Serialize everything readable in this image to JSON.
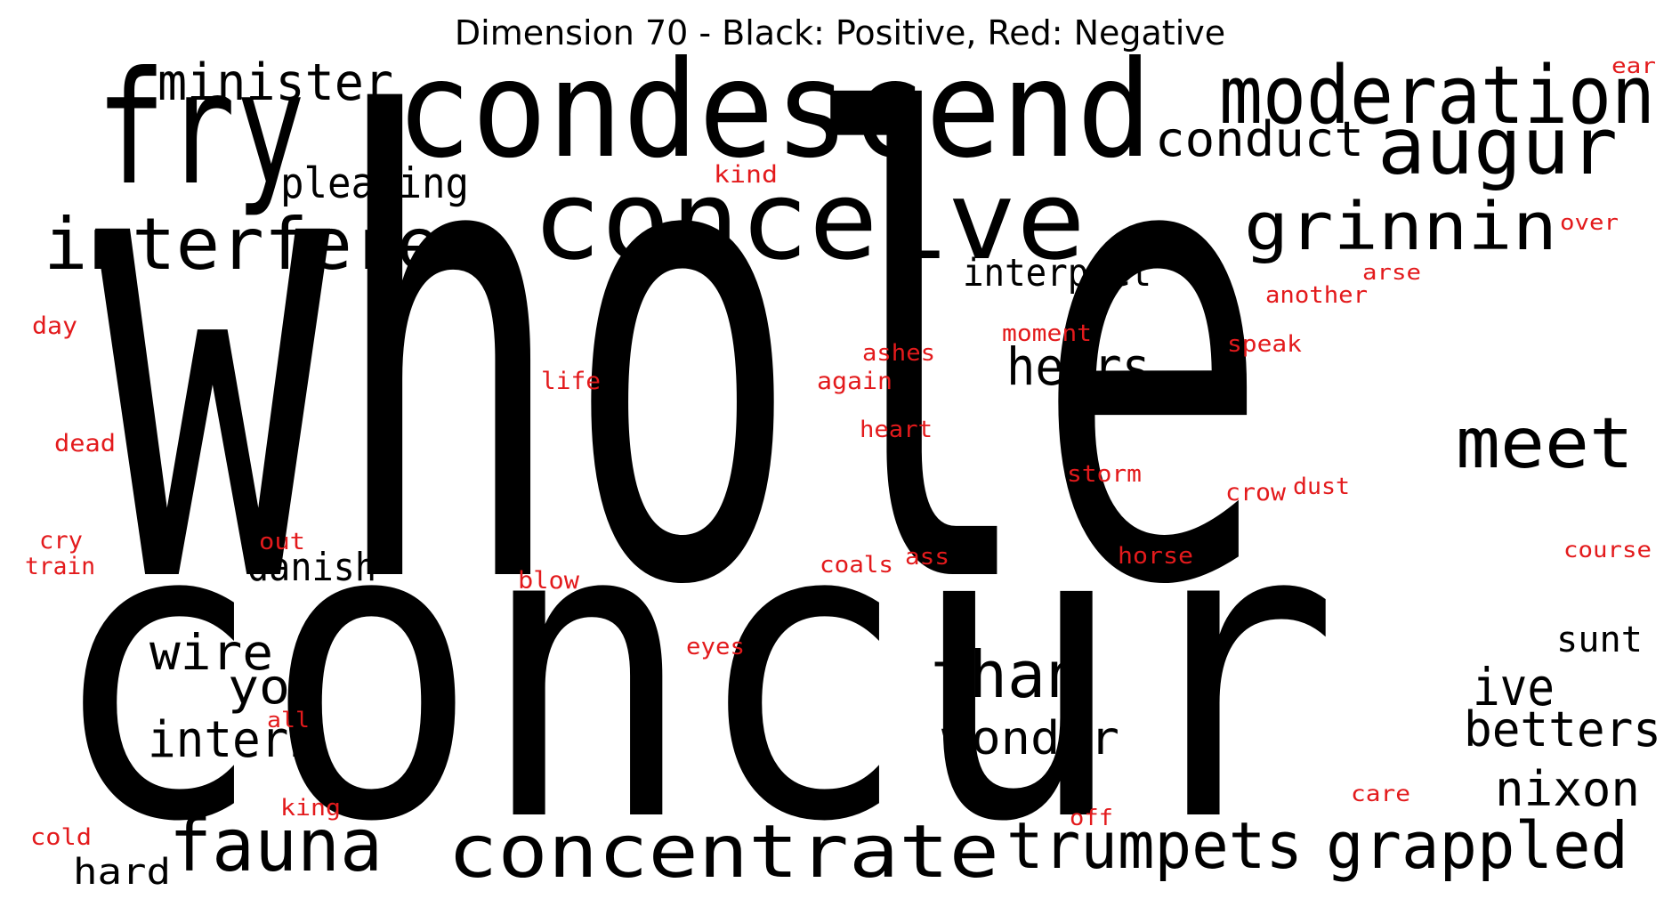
{
  "title": "Dimension 70 - Black: Positive, Red: Negative",
  "colors": {
    "positive": "#000000",
    "negative": "#e31a1c",
    "background": "#ffffff"
  },
  "words": [
    {
      "text": "whole",
      "sign": "positive"
    },
    {
      "text": "concur",
      "sign": "positive"
    },
    {
      "text": "condescend",
      "sign": "positive"
    },
    {
      "text": "conceive",
      "sign": "positive"
    },
    {
      "text": "fry",
      "sign": "positive"
    },
    {
      "text": "moderation",
      "sign": "positive"
    },
    {
      "text": "augur",
      "sign": "positive"
    },
    {
      "text": "minister",
      "sign": "positive"
    },
    {
      "text": "conduct",
      "sign": "positive"
    },
    {
      "text": "grinnin",
      "sign": "positive"
    },
    {
      "text": "pleasing",
      "sign": "positive"
    },
    {
      "text": "interfere",
      "sign": "positive"
    },
    {
      "text": "interpret",
      "sign": "positive"
    },
    {
      "text": "hears",
      "sign": "positive"
    },
    {
      "text": "meet",
      "sign": "positive"
    },
    {
      "text": "danish",
      "sign": "positive"
    },
    {
      "text": "wire",
      "sign": "positive"
    },
    {
      "text": "yon",
      "sign": "positive"
    },
    {
      "text": "intern",
      "sign": "positive"
    },
    {
      "text": "than",
      "sign": "positive"
    },
    {
      "text": "wonder",
      "sign": "positive"
    },
    {
      "text": "sunt",
      "sign": "positive"
    },
    {
      "text": "ive",
      "sign": "positive"
    },
    {
      "text": "betters",
      "sign": "positive"
    },
    {
      "text": "nixon",
      "sign": "positive"
    },
    {
      "text": "fauna",
      "sign": "positive"
    },
    {
      "text": "hard",
      "sign": "positive"
    },
    {
      "text": "concentrate",
      "sign": "positive"
    },
    {
      "text": "trumpets",
      "sign": "positive"
    },
    {
      "text": "grappled",
      "sign": "positive"
    },
    {
      "text": "ear",
      "sign": "negative"
    },
    {
      "text": "kind",
      "sign": "negative"
    },
    {
      "text": "over",
      "sign": "negative"
    },
    {
      "text": "arse",
      "sign": "negative"
    },
    {
      "text": "another",
      "sign": "negative"
    },
    {
      "text": "day",
      "sign": "negative"
    },
    {
      "text": "moment",
      "sign": "negative"
    },
    {
      "text": "ashes",
      "sign": "negative"
    },
    {
      "text": "speak",
      "sign": "negative"
    },
    {
      "text": "life",
      "sign": "negative"
    },
    {
      "text": "again",
      "sign": "negative"
    },
    {
      "text": "dead",
      "sign": "negative"
    },
    {
      "text": "heart",
      "sign": "negative"
    },
    {
      "text": "storm",
      "sign": "negative"
    },
    {
      "text": "crow",
      "sign": "negative"
    },
    {
      "text": "dust",
      "sign": "negative"
    },
    {
      "text": "cry",
      "sign": "negative"
    },
    {
      "text": "out",
      "sign": "negative"
    },
    {
      "text": "train",
      "sign": "negative"
    },
    {
      "text": "blow",
      "sign": "negative"
    },
    {
      "text": "coals",
      "sign": "negative"
    },
    {
      "text": "ass",
      "sign": "negative"
    },
    {
      "text": "horse",
      "sign": "negative"
    },
    {
      "text": "course",
      "sign": "negative"
    },
    {
      "text": "eyes",
      "sign": "negative"
    },
    {
      "text": "all",
      "sign": "negative"
    },
    {
      "text": "king",
      "sign": "negative"
    },
    {
      "text": "off",
      "sign": "negative"
    },
    {
      "text": "care",
      "sign": "negative"
    },
    {
      "text": "cold",
      "sign": "negative"
    }
  ]
}
